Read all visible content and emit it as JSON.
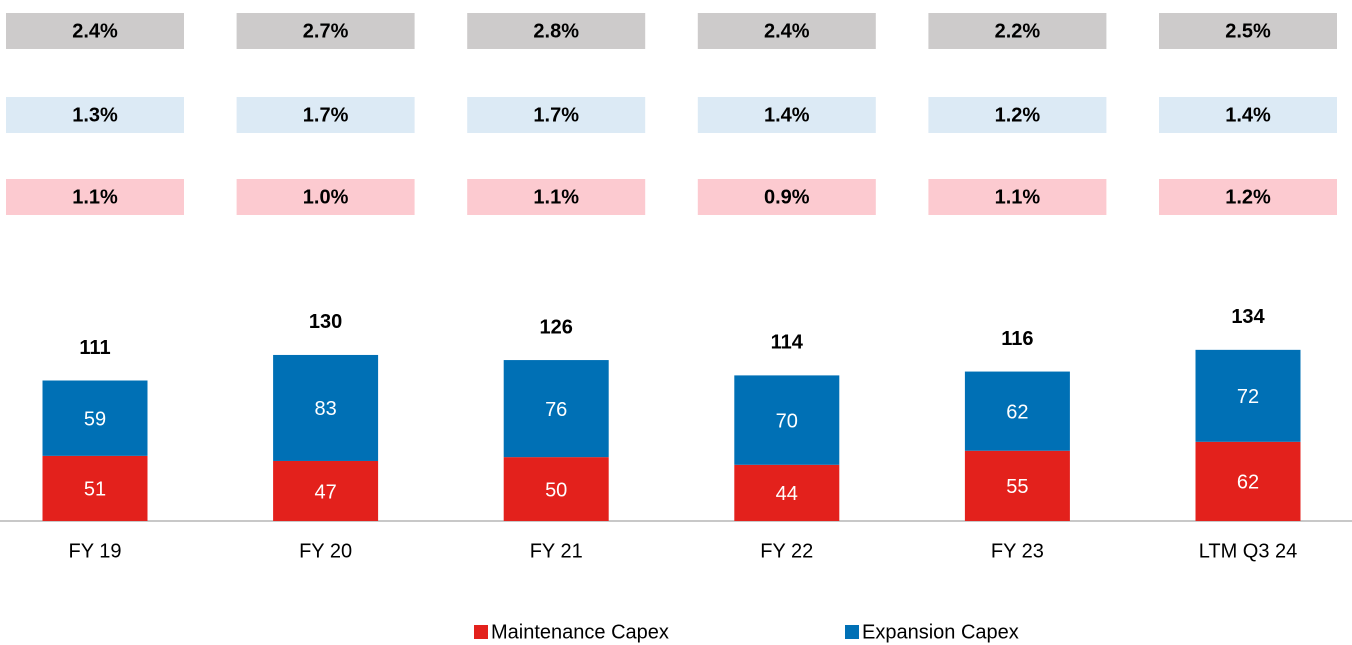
{
  "chart_data": {
    "type": "bar",
    "stacked": true,
    "categories": [
      "FY 19",
      "FY 20",
      "FY 21",
      "FY 22",
      "FY 23",
      "LTM Q3 24"
    ],
    "series": [
      {
        "name": "Maintenance Capex",
        "color": "#e3211c",
        "values": [
          51,
          47,
          50,
          44,
          55,
          62
        ]
      },
      {
        "name": "Expansion Capex",
        "color": "#0070b5",
        "values": [
          59,
          83,
          76,
          70,
          62,
          72
        ]
      }
    ],
    "totals": [
      111,
      130,
      126,
      114,
      116,
      134
    ],
    "ylim": [
      0,
      220
    ],
    "ratio_rows": [
      {
        "color": "#cdcbcb",
        "values": [
          2.4,
          2.7,
          2.8,
          2.4,
          2.2,
          2.5
        ],
        "value_labels": [
          "2.4%",
          "2.7%",
          "2.8%",
          "2.4%",
          "2.2%",
          "2.5%"
        ]
      },
      {
        "color": "#dceaf5",
        "values": [
          1.3,
          1.7,
          1.7,
          1.4,
          1.2,
          1.4
        ],
        "value_labels": [
          "1.3%",
          "1.7%",
          "1.7%",
          "1.4%",
          "1.2%",
          "1.4%"
        ]
      },
      {
        "color": "#fccad0",
        "values": [
          1.1,
          1.0,
          1.1,
          0.9,
          1.1,
          1.2
        ],
        "value_labels": [
          "1.1%",
          "1.0%",
          "1.1%",
          "0.9%",
          "1.1%",
          "1.2%"
        ]
      }
    ]
  }
}
